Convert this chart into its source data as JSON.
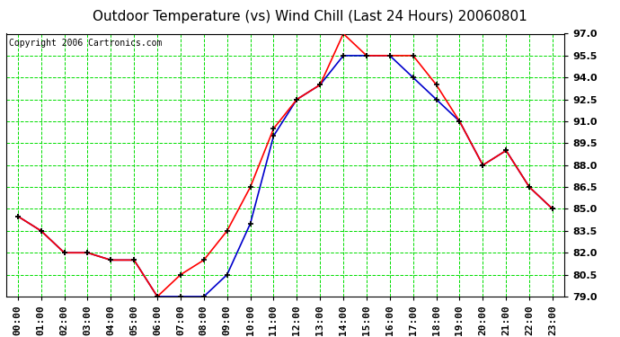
{
  "title": "Outdoor Temperature (vs) Wind Chill (Last 24 Hours) 20060801",
  "copyright": "Copyright 2006 Cartronics.com",
  "hours": [
    "00:00",
    "01:00",
    "02:00",
    "03:00",
    "04:00",
    "05:00",
    "06:00",
    "07:00",
    "08:00",
    "09:00",
    "10:00",
    "11:00",
    "12:00",
    "13:00",
    "14:00",
    "15:00",
    "16:00",
    "17:00",
    "18:00",
    "19:00",
    "20:00",
    "21:00",
    "22:00",
    "23:00"
  ],
  "temp": [
    84.5,
    83.5,
    82.0,
    82.0,
    81.5,
    81.5,
    79.0,
    80.5,
    81.5,
    83.5,
    86.5,
    90.5,
    92.5,
    93.5,
    97.0,
    95.5,
    95.5,
    95.5,
    93.5,
    91.0,
    88.0,
    89.0,
    86.5,
    85.0
  ],
  "wind_chill": [
    84.5,
    83.5,
    82.0,
    82.0,
    81.5,
    81.5,
    79.0,
    79.0,
    79.0,
    80.5,
    84.0,
    90.0,
    92.5,
    93.5,
    95.5,
    95.5,
    95.5,
    94.0,
    92.5,
    91.0,
    88.0,
    89.0,
    86.5,
    85.0
  ],
  "ylim": [
    79.0,
    97.0
  ],
  "yticks": [
    79.0,
    80.5,
    82.0,
    83.5,
    85.0,
    86.5,
    88.0,
    89.5,
    91.0,
    92.5,
    94.0,
    95.5,
    97.0
  ],
  "temp_color": "#ff0000",
  "wind_chill_color": "#0000cc",
  "grid_color": "#00dd00",
  "bg_color": "#ffffff",
  "title_fontsize": 11,
  "copyright_fontsize": 7,
  "tick_fontsize": 8
}
